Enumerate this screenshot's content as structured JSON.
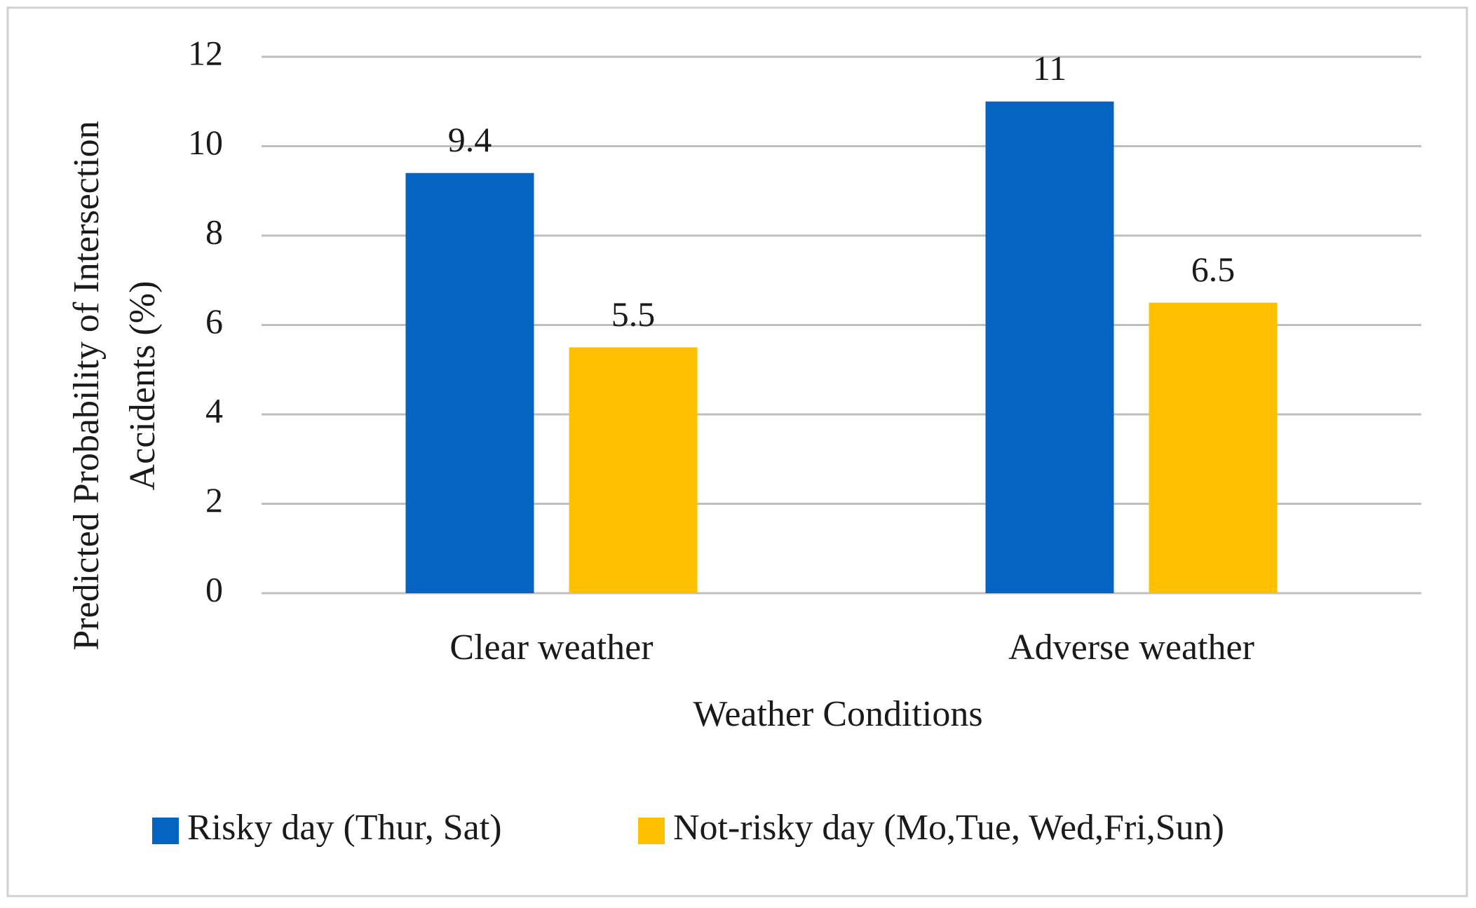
{
  "chart_data": {
    "type": "bar",
    "xlabel": "Weather Conditions",
    "ylabel": [
      "Predicted Probability of Intersection",
      "Accidents (%)"
    ],
    "categories": [
      "Clear weather",
      "Adverse weather"
    ],
    "series": [
      {
        "name": "Risky day (Thur, Sat)",
        "color": "#0563c1",
        "values": [
          9.4,
          11
        ]
      },
      {
        "name": "Not-risky day (Mo,Tue, Wed,Fri,Sun)",
        "color": "#ffc000",
        "values": [
          5.5,
          6.5
        ]
      }
    ],
    "ylim": [
      0,
      12
    ],
    "yticks": [
      0,
      2,
      4,
      6,
      8,
      10,
      12
    ],
    "grid": true,
    "legend": "bottom"
  }
}
